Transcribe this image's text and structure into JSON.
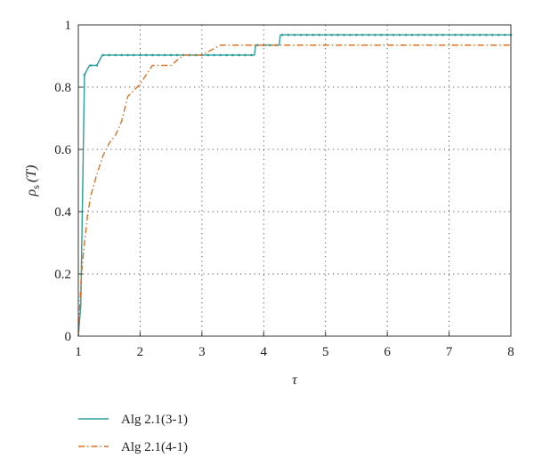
{
  "chart_data": {
    "type": "line",
    "xlabel": "τ",
    "ylabel": {
      "symbol": "ρ",
      "subscript": "s",
      "argument": "(T)"
    },
    "xlim": [
      1,
      8
    ],
    "ylim": [
      0,
      1
    ],
    "xticks": [
      "1",
      "2",
      "3",
      "4",
      "5",
      "6",
      "7",
      "8"
    ],
    "yticks": [
      "0",
      "0.2",
      "0.4",
      "0.6",
      "0.8",
      "1"
    ],
    "grid": true,
    "legend_position": "bottom-left, below plot",
    "series": [
      {
        "name": "Alg 2.1(3-1)",
        "color": "#2a9d9a",
        "dash": "solid",
        "marker": "dot",
        "x": [
          1.0,
          1.04,
          1.1,
          1.18,
          1.3,
          1.38,
          1.4,
          3.85,
          3.87,
          4.25,
          4.27,
          8.0
        ],
        "y": [
          0.0,
          0.1,
          0.84,
          0.87,
          0.87,
          0.9,
          0.903,
          0.903,
          0.935,
          0.935,
          0.968,
          0.968
        ]
      },
      {
        "name": "Alg 2.1(4-1)",
        "color": "#e07020",
        "dash": "dash-dot",
        "marker": "none",
        "x": [
          1.0,
          1.05,
          1.1,
          1.15,
          1.2,
          1.3,
          1.4,
          1.5,
          1.6,
          1.7,
          1.8,
          1.9,
          2.0,
          2.1,
          2.2,
          2.3,
          2.5,
          2.7,
          3.0,
          3.3,
          3.5,
          3.8,
          4.0,
          8.0
        ],
        "y": [
          0.0,
          0.2,
          0.3,
          0.39,
          0.45,
          0.52,
          0.58,
          0.62,
          0.645,
          0.69,
          0.77,
          0.79,
          0.81,
          0.84,
          0.87,
          0.87,
          0.87,
          0.903,
          0.903,
          0.935,
          0.935,
          0.935,
          0.935,
          0.935
        ]
      }
    ]
  }
}
